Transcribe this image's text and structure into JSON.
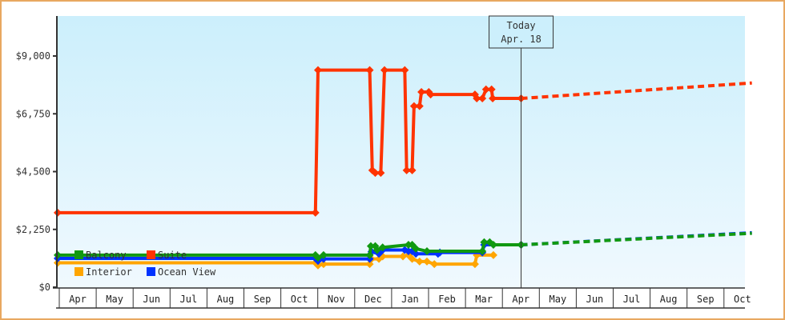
{
  "chart_data": {
    "type": "line",
    "title": "",
    "xlabel": "",
    "ylabel": "",
    "ylim": [
      0,
      10000
    ],
    "y_ticks": [
      {
        "value": 0,
        "label": "$0"
      },
      {
        "value": 2250,
        "label": "$2,250"
      },
      {
        "value": 4500,
        "label": "$4,500"
      },
      {
        "value": 6750,
        "label": "$6,750"
      },
      {
        "value": 9000,
        "label": "$9,000"
      }
    ],
    "x_months": [
      "Apr",
      "May",
      "Jun",
      "Jul",
      "Aug",
      "Sep",
      "Oct",
      "Nov",
      "Dec",
      "Jan",
      "Feb",
      "Mar",
      "Apr",
      "May",
      "Jun",
      "Jul",
      "Aug",
      "Sep",
      "Oct"
    ],
    "today_marker": {
      "line1": "Today",
      "line2": "Apr. 18",
      "month_index": 12.55
    },
    "legend": [
      {
        "name": "Balcony",
        "color": "#119911"
      },
      {
        "name": "Suite",
        "color": "#ff3300"
      },
      {
        "name": "Interior",
        "color": "#ffa500"
      },
      {
        "name": "Ocean View",
        "color": "#0033ff"
      }
    ],
    "series": [
      {
        "name": "Suite",
        "color": "#ff3300",
        "points": [
          [
            0.0,
            2900
          ],
          [
            6.98,
            2900
          ],
          [
            7.05,
            8450
          ],
          [
            7.2,
            8450
          ],
          [
            8.45,
            8450
          ],
          [
            8.52,
            4550
          ],
          [
            8.6,
            4450
          ],
          [
            8.75,
            4450
          ],
          [
            8.85,
            8450
          ],
          [
            9.4,
            8450
          ],
          [
            9.45,
            4550
          ],
          [
            9.6,
            4550
          ],
          [
            9.65,
            7050
          ],
          [
            9.8,
            7050
          ],
          [
            9.85,
            7600
          ],
          [
            10.05,
            7600
          ],
          [
            10.1,
            7500
          ],
          [
            11.3,
            7500
          ],
          [
            11.35,
            7350
          ],
          [
            11.5,
            7350
          ],
          [
            11.6,
            7700
          ],
          [
            11.75,
            7700
          ],
          [
            11.78,
            7350
          ],
          [
            12.55,
            7350
          ]
        ],
        "forecast": [
          [
            12.55,
            7350
          ],
          [
            18.8,
            7950
          ]
        ]
      },
      {
        "name": "Balcony",
        "color": "#119911",
        "points": [
          [
            0.0,
            1250
          ],
          [
            6.98,
            1250
          ],
          [
            7.05,
            1150
          ],
          [
            7.2,
            1250
          ],
          [
            8.45,
            1250
          ],
          [
            8.48,
            1600
          ],
          [
            8.6,
            1600
          ],
          [
            8.65,
            1450
          ],
          [
            8.8,
            1550
          ],
          [
            9.5,
            1650
          ],
          [
            9.6,
            1650
          ],
          [
            9.7,
            1500
          ],
          [
            10.0,
            1400
          ],
          [
            10.2,
            1400
          ],
          [
            11.3,
            1400
          ],
          [
            11.5,
            1400
          ],
          [
            11.55,
            1750
          ],
          [
            11.7,
            1750
          ],
          [
            11.8,
            1650
          ],
          [
            12.55,
            1650
          ]
        ],
        "forecast": [
          [
            12.55,
            1650
          ],
          [
            18.8,
            2100
          ]
        ]
      },
      {
        "name": "Ocean View",
        "color": "#0033ff",
        "points": [
          [
            0.0,
            1120
          ],
          [
            6.98,
            1120
          ],
          [
            7.05,
            1020
          ],
          [
            7.2,
            1100
          ],
          [
            8.45,
            1100
          ],
          [
            8.5,
            1380
          ],
          [
            8.7,
            1300
          ],
          [
            8.8,
            1450
          ],
          [
            9.4,
            1450
          ],
          [
            9.5,
            1400
          ],
          [
            9.6,
            1400
          ],
          [
            9.7,
            1300
          ],
          [
            10.3,
            1300
          ],
          [
            10.35,
            1350
          ],
          [
            11.3,
            1350
          ],
          [
            11.5,
            1350
          ],
          [
            11.55,
            1650
          ],
          [
            12.55,
            1650
          ]
        ],
        "forecast": [
          [
            12.55,
            1650
          ],
          [
            18.8,
            2120
          ]
        ]
      },
      {
        "name": "Interior",
        "color": "#ffa500",
        "points": [
          [
            0.0,
            950
          ],
          [
            6.98,
            950
          ],
          [
            7.05,
            850
          ],
          [
            7.2,
            900
          ],
          [
            8.45,
            900
          ],
          [
            8.5,
            1100
          ],
          [
            8.7,
            1100
          ],
          [
            8.8,
            1200
          ],
          [
            9.35,
            1200
          ],
          [
            9.5,
            1250
          ],
          [
            9.6,
            1100
          ],
          [
            9.8,
            1000
          ],
          [
            10.0,
            1000
          ],
          [
            10.2,
            900
          ],
          [
            10.45,
            900
          ],
          [
            11.3,
            900
          ],
          [
            11.35,
            1250
          ],
          [
            11.8,
            1250
          ]
        ],
        "forecast": []
      }
    ],
    "grid": false,
    "legend_position": "inside-bottom-left"
  }
}
